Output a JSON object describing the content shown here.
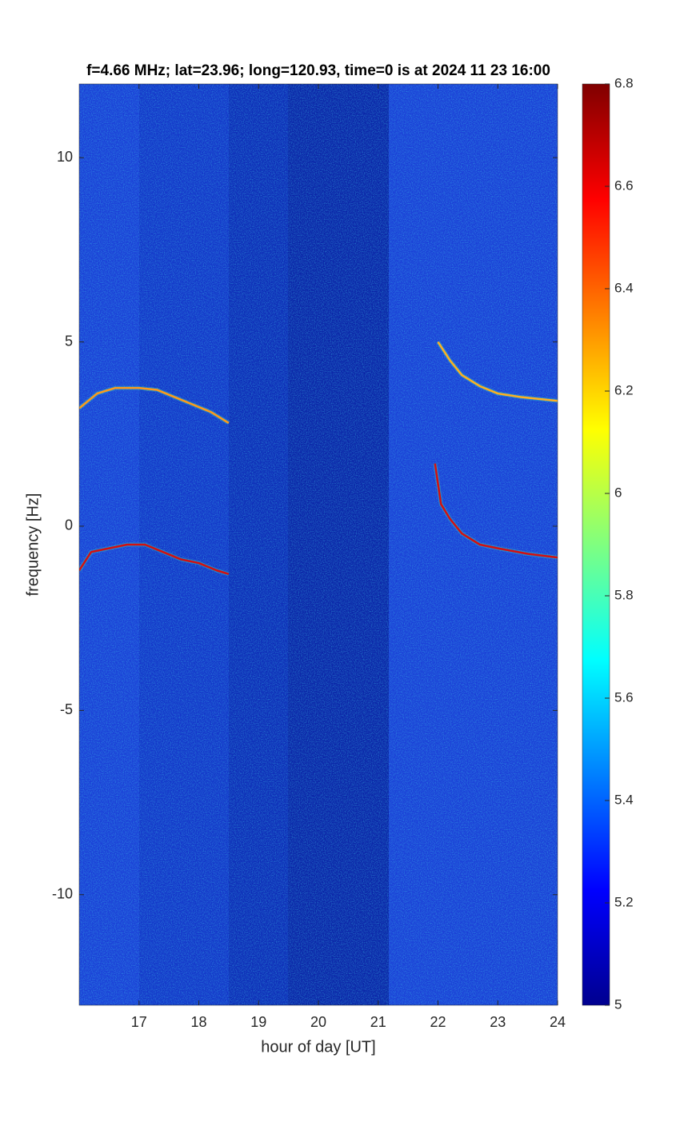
{
  "chart_data": {
    "type": "heatmap",
    "title": "f=4.66 MHz;  lat=23.96; long=120.93, time=0 is at 2024 11 23 16:00",
    "xlabel": "hour of day [UT]",
    "ylabel": "frequency [Hz]",
    "xlim": [
      16,
      24
    ],
    "xticks": [
      17,
      18,
      19,
      20,
      21,
      22,
      23,
      24
    ],
    "ylim": [
      -13,
      12
    ],
    "yticks": [
      -10,
      -5,
      0,
      5,
      10
    ],
    "colorbar": {
      "clim": [
        5,
        6.8
      ],
      "ticks": [
        5,
        5.2,
        5.4,
        5.6,
        5.8,
        6,
        6.2,
        6.4,
        6.6,
        6.8
      ]
    },
    "series": [
      {
        "color": "#ff9a1a",
        "x": [
          16,
          16.3,
          16.6,
          17,
          17.3,
          17.6,
          17.9,
          18.2,
          18.5
        ],
        "values": [
          3.2,
          3.6,
          3.75,
          3.75,
          3.7,
          3.5,
          3.3,
          3.1,
          2.8
        ]
      },
      {
        "color": "#d41010",
        "x": [
          16,
          16.2,
          16.5,
          16.8,
          17.1,
          17.4,
          17.7,
          18,
          18.3,
          18.5
        ],
        "values": [
          -1.2,
          -0.7,
          -0.6,
          -0.5,
          -0.5,
          -0.7,
          -0.9,
          -1,
          -1.2,
          -1.3
        ]
      },
      {
        "color": "#ffb020",
        "x": [
          22,
          22.2,
          22.4,
          22.7,
          23,
          23.4,
          24
        ],
        "values": [
          5,
          4.5,
          4.1,
          3.8,
          3.6,
          3.5,
          3.4
        ]
      },
      {
        "color": "#d41010",
        "x": [
          21.95,
          22.05,
          22.2,
          22.4,
          22.7,
          23,
          23.5,
          24
        ],
        "values": [
          1.7,
          0.6,
          0.2,
          -0.2,
          -0.5,
          -0.6,
          -0.75,
          -0.85
        ]
      }
    ]
  }
}
